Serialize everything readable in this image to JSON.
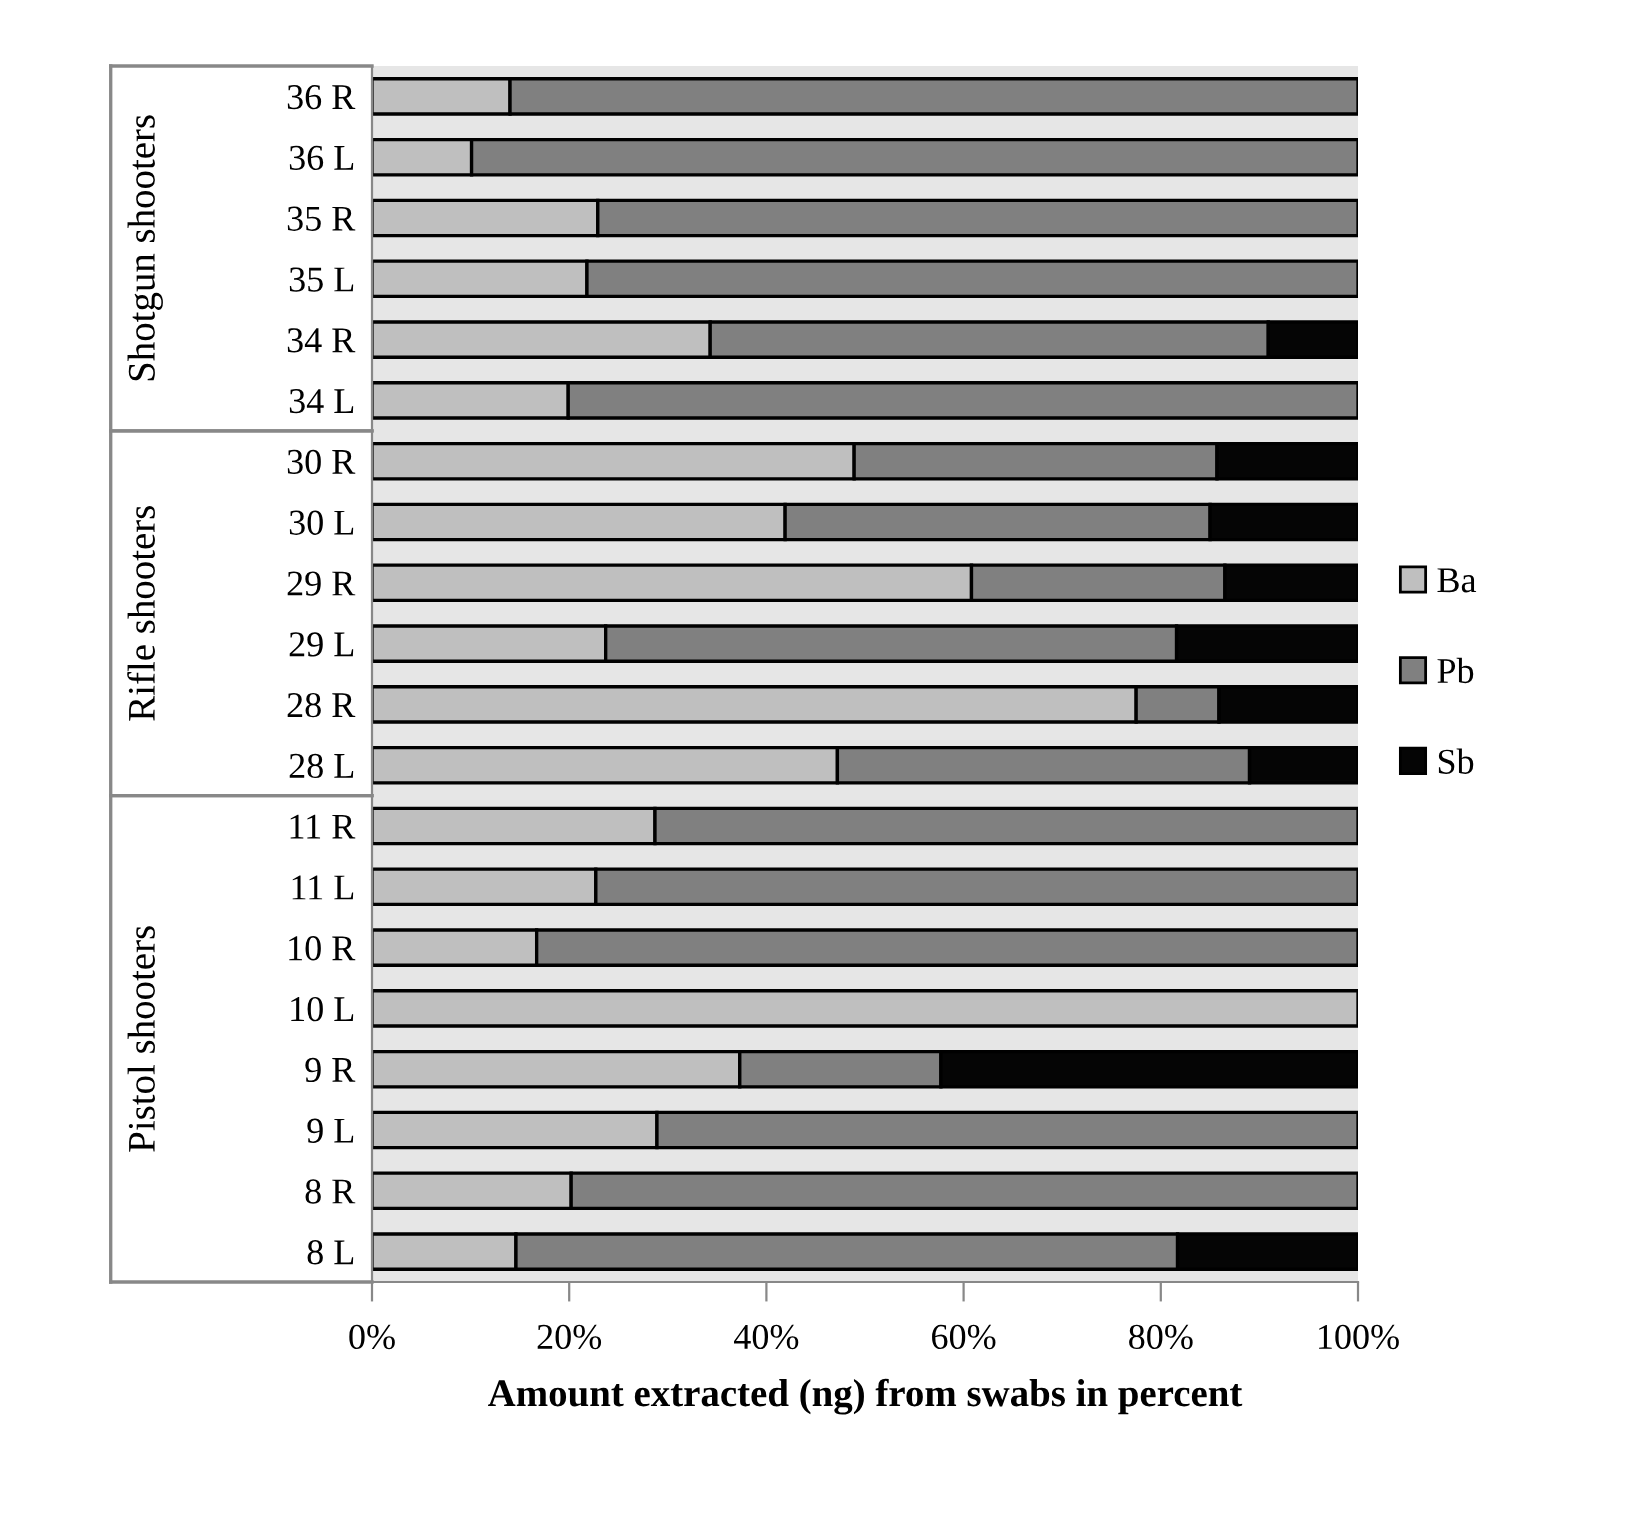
{
  "chart_data": {
    "type": "bar",
    "orientation": "horizontal",
    "stacked": true,
    "xlabel": "Amount extracted (ng) from swabs in percent",
    "categories": [
      "36 R",
      "36 L",
      "35 R",
      "35 L",
      "34 R",
      "34 L",
      "30 R",
      "30 L",
      "29 R",
      "29 L",
      "28 R",
      "28 L",
      "11 R",
      "11 L",
      "10 R",
      "10 L",
      "9 R",
      "9 L",
      "8 R",
      "8 L"
    ],
    "series": [
      {
        "name": "Ba",
        "color": "#bfbfbf",
        "values": [
          14.0,
          10.1,
          22.9,
          21.8,
          34.3,
          19.9,
          48.9,
          41.9,
          60.8,
          23.7,
          77.5,
          47.2,
          28.7,
          22.7,
          16.7,
          100,
          37.3,
          28.9,
          20.2,
          14.6
        ]
      },
      {
        "name": "Pb",
        "color": "#808080",
        "values": [
          86.0,
          89.9,
          77.1,
          78.2,
          56.6,
          80.1,
          36.8,
          43.1,
          25.7,
          57.9,
          8.4,
          41.8,
          71.3,
          77.3,
          83.3,
          0,
          20.4,
          71.1,
          79.8,
          67.1
        ]
      },
      {
        "name": "Sb",
        "color": "#050505",
        "values": [
          0,
          0,
          0,
          0,
          9.1,
          0,
          14.3,
          15.0,
          13.5,
          18.4,
          14.1,
          11.0,
          0,
          0,
          0,
          0,
          42.3,
          0,
          0,
          18.3
        ]
      }
    ],
    "xlim": [
      0,
      100
    ],
    "xticks": [
      {
        "value": 0,
        "label": "0%"
      },
      {
        "value": 20,
        "label": "20%"
      },
      {
        "value": 40,
        "label": "40%"
      },
      {
        "value": 60,
        "label": "60%"
      },
      {
        "value": 80,
        "label": "80%"
      },
      {
        "value": 100,
        "label": "100%"
      }
    ],
    "annotations": [
      "Shotgun shooters",
      "Rifle shooters",
      "Pistol shooters"
    ],
    "legend": "right",
    "grid": false
  }
}
